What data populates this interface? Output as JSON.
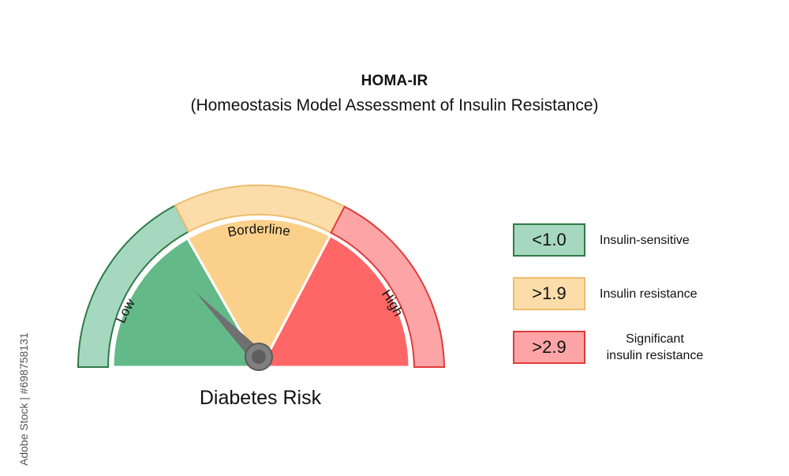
{
  "header": {
    "title": "HOMA-IR",
    "subtitle": "(Homeostasis Model Assessment of Insulin Resistance)"
  },
  "gauge": {
    "caption": "Diabetes Risk",
    "zones": [
      {
        "label": "Low",
        "outer_color": "#a6d8bf",
        "outer_stroke": "#2e7a45",
        "inner_color": "#63ba88"
      },
      {
        "label": "Borderline",
        "outer_color": "#fcddaa",
        "outer_stroke": "#eebc6c",
        "inner_color": "#fad08a"
      },
      {
        "label": "High",
        "outer_color": "#fda5a6",
        "outer_stroke": "#e23a3a",
        "inner_color": "#fe6766"
      }
    ],
    "needle_color": "#707070"
  },
  "legend": [
    {
      "value": "<1.0",
      "description": "Insulin-sensitive",
      "fill": "#a6d8bf",
      "border": "#2e7a45"
    },
    {
      "value": ">1.9",
      "description": "Insulin resistance",
      "fill": "#fcddaa",
      "border": "#eebc6c"
    },
    {
      "value": ">2.9",
      "description_line1": "Significant",
      "description_line2": "insulin resistance",
      "fill": "#fda5a6",
      "border": "#e23a3a"
    }
  ],
  "watermark": {
    "side_text": "Adobe Stock | #698758131"
  }
}
